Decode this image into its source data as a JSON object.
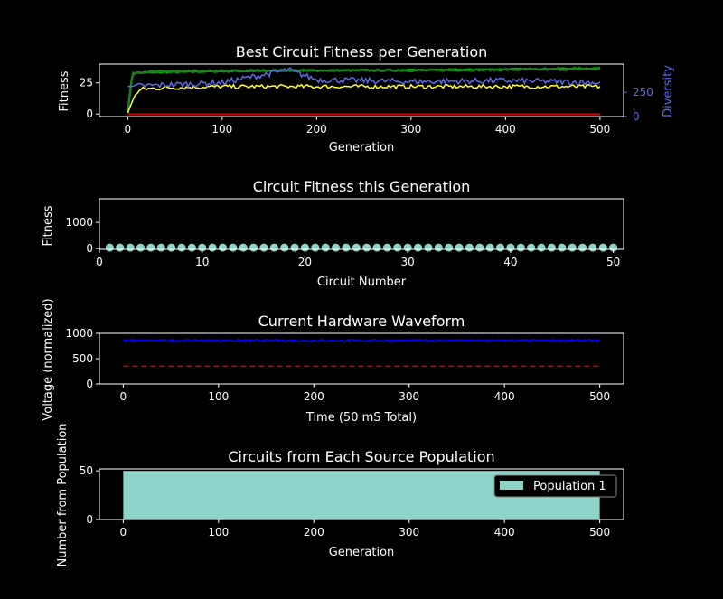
{
  "colors": {
    "background": "#000000",
    "foreground": "#ffffff",
    "diversity": "#5a6be8",
    "best": "#00b300",
    "avg": "#ffff2a",
    "worst": "#e00000",
    "voltage": "#0000ff",
    "dashed": "#e00000",
    "bar": "#8dd3c7"
  },
  "chart_data": [
    {
      "type": "line",
      "title": "Best Circuit Fitness per Generation",
      "xlabel": "Generation",
      "ylabel": "Fitness",
      "ylabel_right": "Diversity",
      "xlim": [
        -30,
        525
      ],
      "ylim": [
        -2,
        40
      ],
      "xticks": [
        0,
        100,
        200,
        300,
        400,
        500
      ],
      "yticks": [
        0,
        25
      ],
      "y2lim": [
        0,
        540
      ],
      "y2ticks": [
        0,
        250
      ],
      "series": [
        {
          "key": "best",
          "values_at": [
            [
              0,
              1
            ],
            [
              5,
              32
            ],
            [
              10,
              33
            ],
            [
              100,
              34
            ],
            [
              250,
              35
            ],
            [
              500,
              37
            ]
          ]
        },
        {
          "key": "best_band",
          "values_at": [
            [
              0,
              1
            ],
            [
              5,
              33
            ],
            [
              20,
              34
            ],
            [
              150,
              35
            ],
            [
              300,
              35
            ],
            [
              500,
              36
            ]
          ]
        },
        {
          "key": "avg",
          "values_at": [
            [
              0,
              1
            ],
            [
              8,
              16
            ],
            [
              15,
              20
            ],
            [
              40,
              21
            ],
            [
              100,
              22
            ],
            [
              500,
              22
            ]
          ]
        },
        {
          "key": "worst",
          "values_at": [
            [
              0,
              0
            ],
            [
              500,
              0
            ]
          ]
        },
        {
          "key": "diversity",
          "axis": "right",
          "values_at": [
            [
              0,
              310
            ],
            [
              50,
              330
            ],
            [
              100,
              350
            ],
            [
              170,
              480
            ],
            [
              200,
              380
            ],
            [
              300,
              360
            ],
            [
              400,
              370
            ],
            [
              500,
              350
            ]
          ]
        }
      ]
    },
    {
      "type": "scatter",
      "title": "Circuit Fitness this Generation",
      "xlabel": "Circuit Number",
      "ylabel": "Fitness",
      "xlim": [
        0,
        51
      ],
      "ylim": [
        -30,
        1900
      ],
      "xticks": [
        0,
        10,
        20,
        30,
        40,
        50
      ],
      "yticks": [
        0,
        1000
      ],
      "x": [
        1,
        2,
        3,
        4,
        5,
        6,
        7,
        8,
        9,
        10,
        11,
        12,
        13,
        14,
        15,
        16,
        17,
        18,
        19,
        20,
        21,
        22,
        23,
        24,
        25,
        26,
        27,
        28,
        29,
        30,
        31,
        32,
        33,
        34,
        35,
        36,
        37,
        38,
        39,
        40,
        41,
        42,
        43,
        44,
        45,
        46,
        47,
        48,
        49,
        50
      ],
      "y": [
        36,
        36,
        36,
        36,
        36,
        36,
        36,
        36,
        36,
        36,
        36,
        36,
        36,
        36,
        36,
        36,
        36,
        36,
        36,
        36,
        36,
        36,
        36,
        36,
        36,
        36,
        36,
        36,
        36,
        36,
        36,
        36,
        36,
        36,
        36,
        36,
        36,
        36,
        36,
        36,
        36,
        36,
        36,
        36,
        36,
        36,
        36,
        36,
        36,
        36
      ]
    },
    {
      "type": "line",
      "title": "Current Hardware Waveform",
      "xlabel": "Time (50 mS Total)",
      "ylabel": "Voltage (normalized)",
      "xlim": [
        -25,
        525
      ],
      "ylim": [
        0,
        1000
      ],
      "xticks": [
        0,
        100,
        200,
        300,
        400,
        500
      ],
      "yticks": [
        0,
        500,
        1000
      ],
      "series": [
        {
          "key": "voltage",
          "base": 860,
          "noise": 22
        },
        {
          "key": "dashed",
          "value": 350
        }
      ]
    },
    {
      "type": "bar",
      "title": "Circuits from Each Source Population",
      "xlabel": "Generation",
      "ylabel": "Number from Population",
      "xlim": [
        -25,
        525
      ],
      "ylim": [
        0,
        52
      ],
      "xticks": [
        0,
        100,
        200,
        300,
        400,
        500
      ],
      "yticks": [
        0,
        50
      ],
      "legend": "top-right",
      "series": [
        {
          "name": "Population 1",
          "x_range": [
            0,
            500
          ],
          "value": 50
        }
      ]
    }
  ]
}
